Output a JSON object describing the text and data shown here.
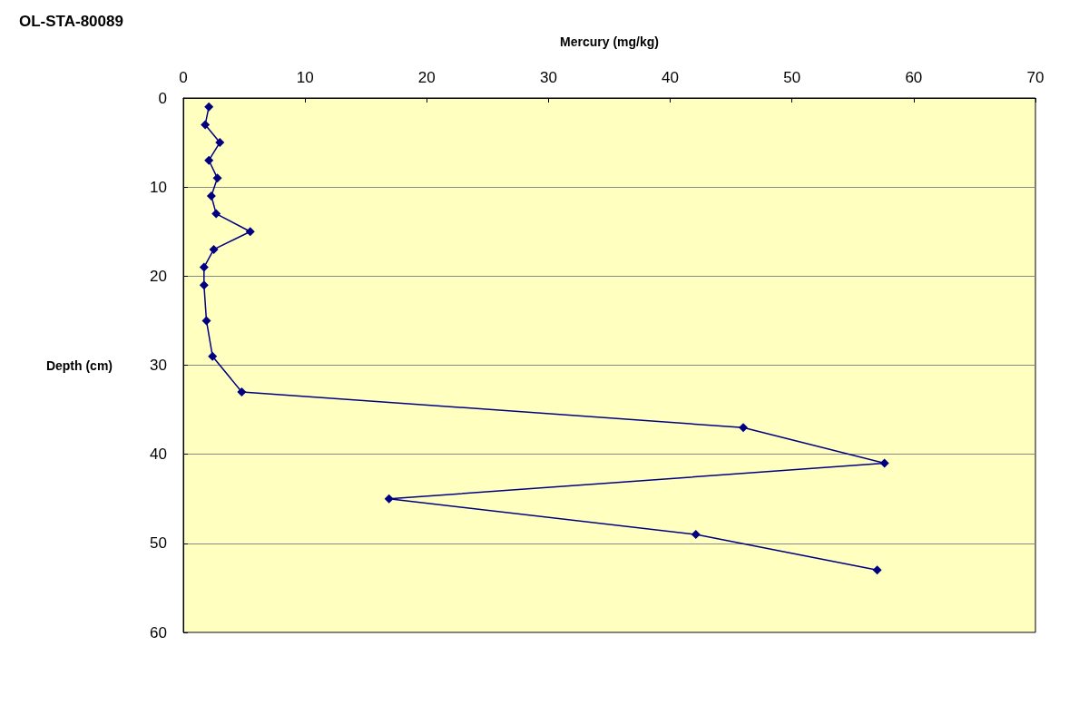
{
  "chart_data": {
    "type": "line",
    "title": "OL-STA-80089",
    "xlabel": "Mercury (mg/kg)",
    "ylabel": "Depth (cm)",
    "x": [
      2.1,
      1.8,
      3.0,
      2.1,
      2.8,
      2.3,
      2.7,
      5.5,
      2.5,
      1.7,
      1.7,
      1.9,
      2.4,
      4.8,
      46.0,
      57.6,
      16.9,
      42.1,
      57.0
    ],
    "values": [
      1,
      3,
      5,
      7,
      9,
      11,
      13,
      15,
      17,
      19,
      21,
      25,
      29,
      33,
      37,
      41,
      45,
      49,
      53
    ],
    "color": "#000080",
    "marker": "diamond",
    "line_style": "solid",
    "xlim": [
      0,
      70
    ],
    "xticks": [
      0,
      10,
      20,
      30,
      40,
      50,
      60,
      70
    ],
    "ylim": [
      60,
      0
    ],
    "yticks": [
      0,
      10,
      20,
      30,
      40,
      50,
      60
    ],
    "grid": "y"
  }
}
